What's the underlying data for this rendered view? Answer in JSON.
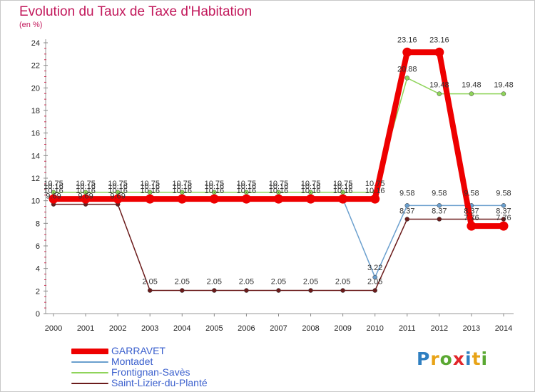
{
  "title": "Evolution du Taux de Taxe d'Habitation",
  "subtitle": "(en %)",
  "logo": {
    "text": [
      "P",
      "r",
      "o",
      "x",
      "i",
      "t",
      "i"
    ],
    "colors": [
      "#2f7fc1",
      "#e8a317",
      "#5aa832",
      "#e2262a",
      "#2f7fc1",
      "#e8a317",
      "#5aa832"
    ]
  },
  "chart_data": {
    "type": "line",
    "categories": [
      "2000",
      "2001",
      "2002",
      "2003",
      "2004",
      "2005",
      "2006",
      "2007",
      "2008",
      "2009",
      "2010",
      "2011",
      "2012",
      "2013",
      "2014"
    ],
    "ylim": [
      0,
      24
    ],
    "yticks": [
      "0",
      "2",
      "4",
      "6",
      "8",
      "10",
      "12",
      "14",
      "16",
      "18",
      "20",
      "22",
      "24"
    ],
    "grid": false,
    "legend_position": "bottom-left",
    "series": [
      {
        "name": "GARRAVET",
        "color": "#ee0000",
        "values": [
          10.16,
          10.16,
          10.16,
          10.16,
          10.16,
          10.16,
          10.16,
          10.16,
          10.16,
          10.16,
          10.16,
          23.16,
          23.16,
          7.76,
          7.76
        ],
        "labels": [
          "10.16",
          "10.16",
          "10.16",
          "10.16",
          "10.16",
          "10.16",
          "10.16",
          "10.16",
          "10.16",
          "10.16",
          "10.16",
          "23.16",
          "23.16",
          "7.76",
          "7.76"
        ]
      },
      {
        "name": "Montadet",
        "color": "#6a9fce",
        "values": [
          10.16,
          10.16,
          10.16,
          10.16,
          10.16,
          10.16,
          10.16,
          10.16,
          10.16,
          10.16,
          3.22,
          9.58,
          9.58,
          9.58,
          9.58
        ],
        "labels": [
          "10.16",
          "10.16",
          "10.16",
          "10.16",
          "10.16",
          "10.16",
          "10.16",
          "10.16",
          "10.16",
          "10.16",
          "3.22",
          "9.58",
          "9.58",
          "9.58",
          "9.58"
        ]
      },
      {
        "name": "Frontignan-Savès",
        "color": "#8fd45a",
        "values": [
          10.75,
          10.75,
          10.75,
          10.75,
          10.75,
          10.75,
          10.75,
          10.75,
          10.75,
          10.75,
          10.75,
          20.88,
          19.48,
          19.48,
          19.48
        ],
        "labels": [
          "10.75",
          "10.75",
          "10.75",
          "10.75",
          "10.75",
          "10.75",
          "10.75",
          "10.75",
          "10.75",
          "10.75",
          "10.75",
          "20.88",
          "19.48",
          "19.48",
          "19.48"
        ]
      },
      {
        "name": "Saint-Lizier-du-Planté",
        "color": "#6b1b1b",
        "values": [
          9.69,
          9.69,
          9.69,
          2.05,
          2.05,
          2.05,
          2.05,
          2.05,
          2.05,
          2.05,
          2.05,
          8.37,
          8.37,
          8.37,
          8.37
        ],
        "labels": [
          "9.69",
          "9.69",
          "9.69",
          "2.05",
          "2.05",
          "2.05",
          "2.05",
          "2.05",
          "2.05",
          "2.05",
          "2.05",
          "8.37",
          "8.37",
          "8.37",
          "8.37"
        ]
      }
    ]
  }
}
